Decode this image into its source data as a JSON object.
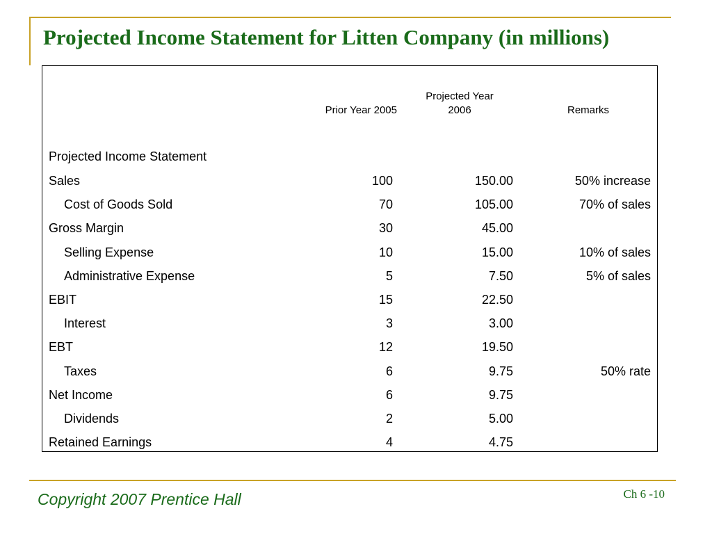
{
  "slide": {
    "title": "Projected Income Statement for Litten Company (in millions)",
    "footer_left": "Copyright 2007 Prentice Hall",
    "footer_right": "Ch 6 -10",
    "accent_color": "#c9a227",
    "title_color": "#1a6b1a"
  },
  "table": {
    "headers": {
      "prior": "Prior Year 2005",
      "projected_line1": "Projected Year",
      "projected_line2": "2006",
      "remarks": "Remarks"
    },
    "section_label": "Projected Income Statement",
    "rows": [
      {
        "label": "Sales",
        "prior": "100",
        "projected": "150.00",
        "remark": "50% increase",
        "indent": false
      },
      {
        "label": "Cost of Goods Sold",
        "prior": "70",
        "projected": "105.00",
        "remark": "70% of sales",
        "indent": true
      },
      {
        "label": "Gross Margin",
        "prior": "30",
        "projected": "45.00",
        "remark": "",
        "indent": false
      },
      {
        "label": "Selling Expense",
        "prior": "10",
        "projected": "15.00",
        "remark": "10% of sales",
        "indent": true
      },
      {
        "label": "Administrative Expense",
        "prior": "5",
        "projected": "7.50",
        "remark": "5% of sales",
        "indent": true
      },
      {
        "label": "EBIT",
        "prior": "15",
        "projected": "22.50",
        "remark": "",
        "indent": false
      },
      {
        "label": "Interest",
        "prior": "3",
        "projected": "3.00",
        "remark": "",
        "indent": true
      },
      {
        "label": "EBT",
        "prior": "12",
        "projected": "19.50",
        "remark": "",
        "indent": false
      },
      {
        "label": "Taxes",
        "prior": "6",
        "projected": "9.75",
        "remark": "50% rate",
        "indent": true
      },
      {
        "label": "Net Income",
        "prior": "6",
        "projected": "9.75",
        "remark": "",
        "indent": false
      },
      {
        "label": "Dividends",
        "prior": "2",
        "projected": "5.00",
        "remark": "",
        "indent": true
      },
      {
        "label": "Retained Earnings",
        "prior": "4",
        "projected": "4.75",
        "remark": "",
        "indent": false
      }
    ]
  }
}
